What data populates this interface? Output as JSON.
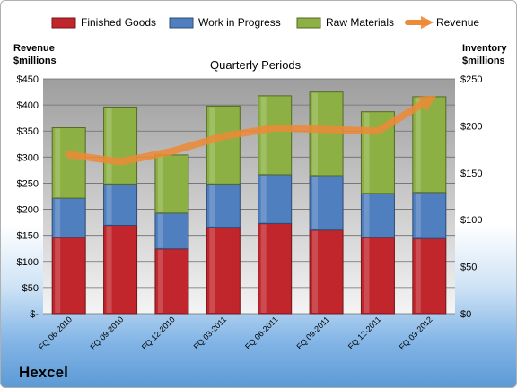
{
  "brand": "Hexcel",
  "chart_data": {
    "type": "bar",
    "stacked": true,
    "title": "Quarterly Periods",
    "categories": [
      "FQ 06-2010",
      "FQ 09-2010",
      "FQ 12-2010",
      "FQ 03-2011",
      "FQ 06-2011",
      "FQ 09-2011",
      "FQ 12-2011",
      "FQ 03-2012"
    ],
    "left_axis": {
      "label_line1": "Revenue",
      "label_line2": "$millions",
      "ylim": [
        0,
        450
      ],
      "ticks": [
        0,
        50,
        100,
        150,
        200,
        250,
        300,
        350,
        400,
        450
      ],
      "tick_labels": [
        "$-",
        "$50",
        "$100",
        "$150",
        "$200",
        "$250",
        "$300",
        "$350",
        "$400",
        "$450"
      ]
    },
    "right_axis": {
      "label_line1": "Inventory",
      "label_line2": "$millions",
      "ylim": [
        0,
        250
      ],
      "ticks": [
        0,
        50,
        100,
        150,
        200,
        250
      ],
      "tick_labels": [
        "$0",
        "$50",
        "$100",
        "$150",
        "$200",
        "$250"
      ]
    },
    "series": [
      {
        "name": "Finished Goods",
        "axis": "right",
        "color": "#c0262b",
        "values": [
          81,
          94,
          69,
          92,
          96,
          89,
          81,
          80
        ]
      },
      {
        "name": "Work in Progress",
        "axis": "right",
        "color": "#4f7fbf",
        "values": [
          42,
          44,
          38,
          46,
          52,
          58,
          47,
          49
        ]
      },
      {
        "name": "Raw Materials",
        "axis": "right",
        "color": "#8cb043",
        "values": [
          75,
          82,
          62,
          83,
          84,
          89,
          87,
          102
        ]
      },
      {
        "name": "Revenue",
        "axis": "left",
        "type": "line",
        "color": "#ee8a36",
        "values": [
          305,
          291,
          311,
          340,
          356,
          353,
          350,
          410
        ]
      }
    ],
    "legend_position": "top",
    "grid": true
  }
}
